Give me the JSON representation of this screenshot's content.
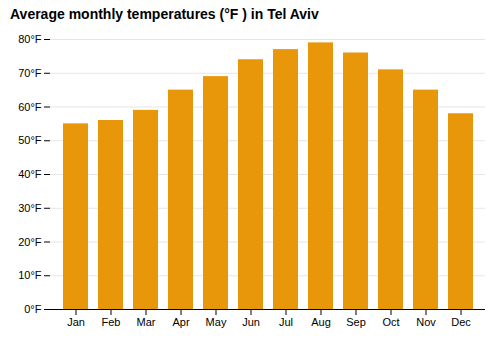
{
  "chart_data": {
    "type": "bar",
    "title": "Average monthly temperatures (°F ) in Tel Aviv",
    "categories": [
      "Jan",
      "Feb",
      "Mar",
      "Apr",
      "May",
      "Jun",
      "Jul",
      "Aug",
      "Sep",
      "Oct",
      "Nov",
      "Dec"
    ],
    "values": [
      55,
      56,
      59,
      65,
      69,
      74,
      77,
      79,
      76,
      71,
      65,
      58
    ],
    "color": "#E8960A",
    "ylim": [
      0,
      80
    ],
    "yticks": [
      {
        "value": 0,
        "label": "0°F"
      },
      {
        "value": 10,
        "label": "10°F"
      },
      {
        "value": 20,
        "label": "20°F"
      },
      {
        "value": 30,
        "label": "30°F"
      },
      {
        "value": 40,
        "label": "40°F"
      },
      {
        "value": 50,
        "label": "50°F"
      },
      {
        "value": 60,
        "label": "60°F"
      },
      {
        "value": 70,
        "label": "70°F"
      },
      {
        "value": 80,
        "label": "80°F"
      }
    ],
    "grid": true
  }
}
